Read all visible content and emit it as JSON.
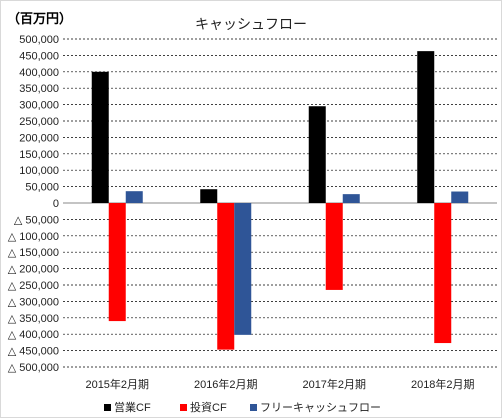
{
  "chart_data": {
    "type": "bar",
    "title": "キャッシュフロー",
    "unit_label": "（百万円）",
    "categories": [
      "2015年2月期",
      "2016年2月期",
      "2017年2月期",
      "2018年2月期"
    ],
    "series": [
      {
        "name": "営業CF",
        "color": "#000000",
        "values": [
          400000,
          42000,
          295000,
          463000
        ]
      },
      {
        "name": "投資CF",
        "color": "#ff0000",
        "values": [
          -360000,
          -447000,
          -265000,
          -427000
        ]
      },
      {
        "name": "フリーキャッシュフロー",
        "color": "#2f5597",
        "values": [
          36000,
          -402000,
          27000,
          35000
        ]
      }
    ],
    "ylim": [
      -500000,
      500000
    ],
    "ytick_step": 50000,
    "yticks": [
      "500,000",
      "450,000",
      "400,000",
      "350,000",
      "300,000",
      "250,000",
      "200,000",
      "150,000",
      "100,000",
      "50,000",
      "0",
      "△ 50,000",
      "△ 100,000",
      "△ 150,000",
      "△ 200,000",
      "△ 250,000",
      "△ 300,000",
      "△ 350,000",
      "△ 400,000",
      "△ 450,000",
      "△ 500,000"
    ],
    "grid": true,
    "legend": "bottom"
  }
}
